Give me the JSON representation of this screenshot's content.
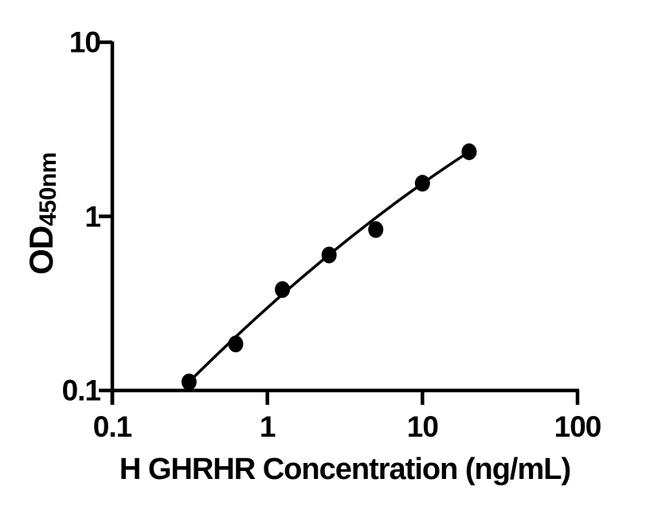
{
  "figure": {
    "background": "#ffffff",
    "ink_color": "#000000"
  },
  "chart_data": {
    "type": "scatter",
    "title": "",
    "xlabel": "H GHRHR Concentration (ng/mL)",
    "ylabel": "OD",
    "ylabel_subscript": "450nm",
    "x_scale": "log",
    "y_scale": "log",
    "xlim": [
      0.1,
      100
    ],
    "ylim": [
      0.1,
      10
    ],
    "grid": "off",
    "legend": "none",
    "x_ticks": [
      {
        "value": 0.1,
        "label": "0.1"
      },
      {
        "value": 1,
        "label": "1"
      },
      {
        "value": 10,
        "label": "10"
      },
      {
        "value": 100,
        "label": "100"
      }
    ],
    "y_ticks": [
      {
        "value": 0.1,
        "label": "0.1"
      },
      {
        "value": 1,
        "label": "1"
      },
      {
        "value": 10,
        "label": "10"
      }
    ],
    "series": [
      {
        "marker": "filled-circle",
        "marker_color": "#000000",
        "trend_line": true,
        "trend_line_color": "#000000",
        "points": [
          {
            "x": 0.3125,
            "y": 0.112
          },
          {
            "x": 0.625,
            "y": 0.185
          },
          {
            "x": 1.25,
            "y": 0.38
          },
          {
            "x": 2.5,
            "y": 0.6
          },
          {
            "x": 5,
            "y": 0.84
          },
          {
            "x": 10,
            "y": 1.55
          },
          {
            "x": 20,
            "y": 2.35
          }
        ]
      }
    ]
  }
}
